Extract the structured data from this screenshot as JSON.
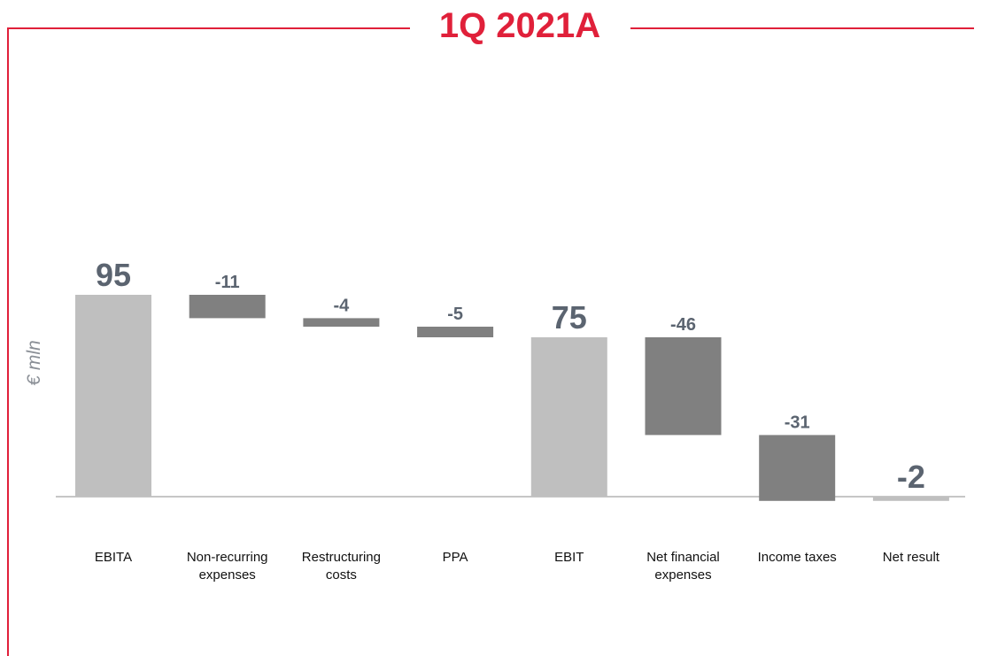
{
  "chart_data": {
    "type": "waterfall",
    "title": "1Q 2021A",
    "y_label": "€ mln",
    "categories": [
      "EBITA",
      "Non-recurring expenses",
      "Restructuring costs",
      "PPA",
      "EBIT",
      "Net financial expenses",
      "Income taxes",
      "Net result"
    ],
    "values": [
      95,
      -11,
      -4,
      -5,
      75,
      -46,
      -31,
      -2
    ],
    "measure": [
      "total",
      "relative",
      "relative",
      "relative",
      "total",
      "relative",
      "relative",
      "total"
    ],
    "colors": {
      "total": "#bfbfbf",
      "relative": "#808080"
    }
  }
}
